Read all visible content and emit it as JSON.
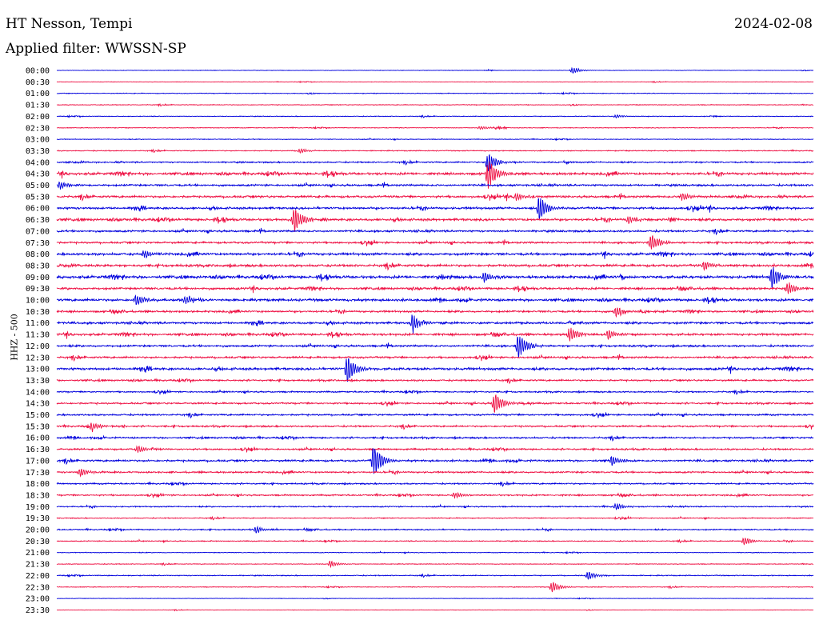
{
  "header": {
    "station": "HT Nesson, Tempi",
    "filter": "Applied filter: WWSSN-SP",
    "date": "2024-02-08",
    "channel": "HHZ - 500"
  },
  "chart_data": {
    "type": "line",
    "title": "HT Nesson, Tempi",
    "subtitle": "Applied filter: WWSSN-SP",
    "ylabel": "HHZ - 500",
    "tick_labels": [
      "00:00",
      "00:30",
      "01:00",
      "01:30",
      "02:00",
      "02:30",
      "03:00",
      "03:30",
      "04:00",
      "04:30",
      "05:00",
      "05:30",
      "06:00",
      "06:30",
      "07:00",
      "07:30",
      "08:00",
      "08:30",
      "09:00",
      "09:30",
      "10:00",
      "10:30",
      "11:00",
      "11:30",
      "12:00",
      "12:30",
      "13:00",
      "13:30",
      "14:00",
      "14:30",
      "15:00",
      "15:30",
      "16:00",
      "16:30",
      "17:00",
      "17:30",
      "18:00",
      "18:30",
      "19:00",
      "19:30",
      "20:00",
      "20:30",
      "21:00",
      "21:30",
      "22:00",
      "22:30",
      "23:00",
      "23:30"
    ],
    "colors": [
      "#0000dd",
      "#ee1144"
    ],
    "noise_level": [
      0.2,
      0.2,
      0.3,
      0.3,
      0.3,
      0.3,
      0.3,
      0.4,
      0.6,
      1.0,
      0.8,
      0.9,
      0.9,
      1.0,
      0.8,
      0.8,
      1.0,
      1.0,
      1.1,
      0.9,
      1.0,
      0.8,
      0.9,
      0.9,
      0.8,
      0.8,
      1.0,
      0.7,
      0.6,
      0.7,
      0.7,
      0.7,
      0.7,
      0.7,
      0.8,
      0.7,
      0.6,
      0.6,
      0.5,
      0.4,
      0.5,
      0.4,
      0.3,
      0.3,
      0.4,
      0.3,
      0.2,
      0.2
    ],
    "events": [
      {
        "trace": 0,
        "x": 716,
        "amp": 4
      },
      {
        "trace": 4,
        "x": 770,
        "amp": 2
      },
      {
        "trace": 5,
        "x": 600,
        "amp": 2
      },
      {
        "trace": 7,
        "x": 375,
        "amp": 3
      },
      {
        "trace": 8,
        "x": 610,
        "amp": 12
      },
      {
        "trace": 9,
        "x": 610,
        "amp": 20
      },
      {
        "trace": 10,
        "x": 75,
        "amp": 5
      },
      {
        "trace": 11,
        "x": 645,
        "amp": 5
      },
      {
        "trace": 11,
        "x": 852,
        "amp": 5
      },
      {
        "trace": 12,
        "x": 674,
        "amp": 16
      },
      {
        "trace": 13,
        "x": 368,
        "amp": 16
      },
      {
        "trace": 13,
        "x": 786,
        "amp": 5
      },
      {
        "trace": 15,
        "x": 814,
        "amp": 11
      },
      {
        "trace": 16,
        "x": 180,
        "amp": 5
      },
      {
        "trace": 17,
        "x": 880,
        "amp": 5
      },
      {
        "trace": 18,
        "x": 965,
        "amp": 14
      },
      {
        "trace": 18,
        "x": 605,
        "amp": 6
      },
      {
        "trace": 19,
        "x": 985,
        "amp": 8
      },
      {
        "trace": 20,
        "x": 170,
        "amp": 7
      },
      {
        "trace": 20,
        "x": 232,
        "amp": 5
      },
      {
        "trace": 21,
        "x": 770,
        "amp": 6
      },
      {
        "trace": 22,
        "x": 516,
        "amp": 9
      },
      {
        "trace": 23,
        "x": 712,
        "amp": 10
      },
      {
        "trace": 23,
        "x": 760,
        "amp": 6
      },
      {
        "trace": 24,
        "x": 648,
        "amp": 16
      },
      {
        "trace": 26,
        "x": 434,
        "amp": 17
      },
      {
        "trace": 29,
        "x": 618,
        "amp": 13
      },
      {
        "trace": 31,
        "x": 115,
        "amp": 5
      },
      {
        "trace": 33,
        "x": 172,
        "amp": 5
      },
      {
        "trace": 34,
        "x": 467,
        "amp": 20
      },
      {
        "trace": 34,
        "x": 765,
        "amp": 6
      },
      {
        "trace": 35,
        "x": 100,
        "amp": 5
      },
      {
        "trace": 37,
        "x": 568,
        "amp": 4
      },
      {
        "trace": 38,
        "x": 770,
        "amp": 4
      },
      {
        "trace": 40,
        "x": 320,
        "amp": 4
      },
      {
        "trace": 41,
        "x": 930,
        "amp": 5
      },
      {
        "trace": 43,
        "x": 413,
        "amp": 4
      },
      {
        "trace": 44,
        "x": 735,
        "amp": 5
      },
      {
        "trace": 45,
        "x": 690,
        "amp": 7
      }
    ]
  }
}
